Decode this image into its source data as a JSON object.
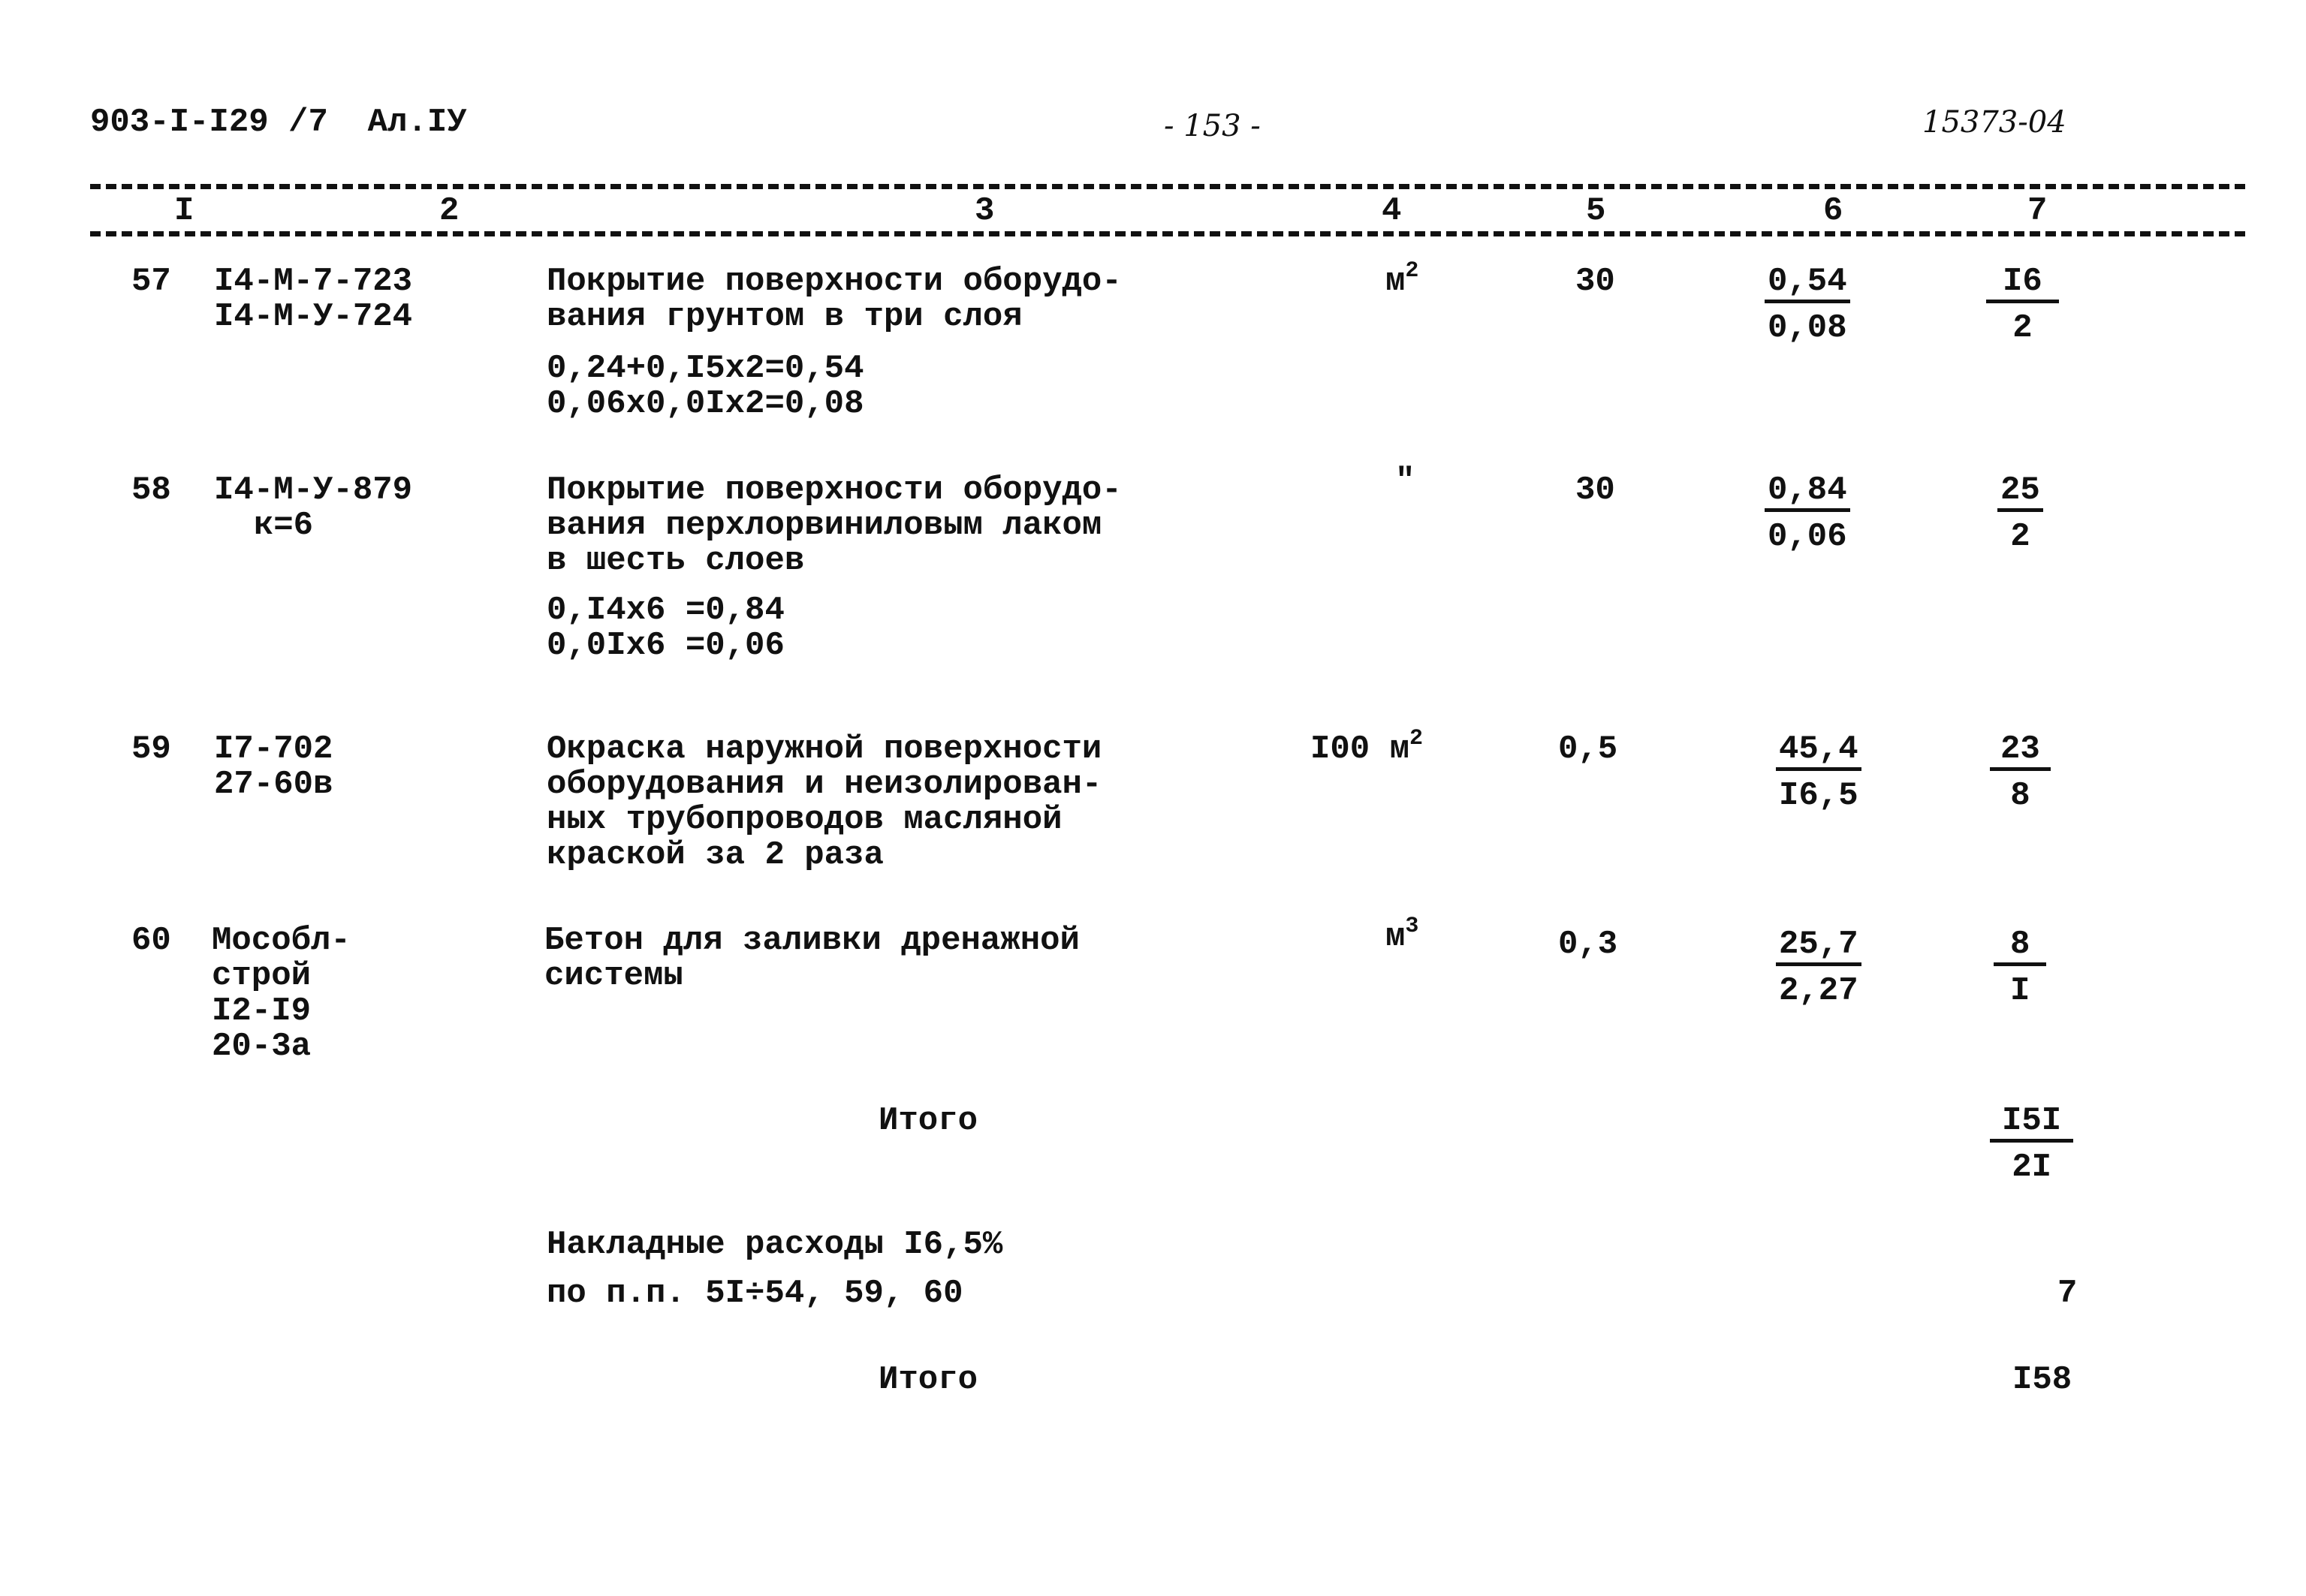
{
  "header": {
    "doc_code": "903-I-I29 /7  Ал.IУ",
    "page_number": "- 153 -",
    "archive_number": "15373-04"
  },
  "columns": [
    "I",
    "2",
    "3",
    "4",
    "5",
    "6",
    "7"
  ],
  "rows": [
    {
      "no": "57",
      "code": [
        "I4-M-7-723",
        "I4-M-У-724"
      ],
      "description": [
        "Покрытие поверхности оборудо-",
        "вания грунтом в три слоя"
      ],
      "calc": [
        "0,24+0,I5x2=0,54",
        "0,06x0,0Ix2=0,08"
      ],
      "unit": "м",
      "unit_sup": "2",
      "qty": "30",
      "col6_top": "0,54",
      "col6_bot": "0,08",
      "col7_top": "I6",
      "col7_bot": "2"
    },
    {
      "no": "58",
      "code": [
        "I4-M-У-879",
        "к=6"
      ],
      "description": [
        "Покрытие поверхности оборудо-",
        "вания перхлорвиниловым лаком",
        "в шесть слоев"
      ],
      "calc": [
        "0,I4x6 =0,84",
        "0,0Ix6 =0,06"
      ],
      "unit": "\"",
      "unit_sup": "",
      "qty": "30",
      "col6_top": "0,84",
      "col6_bot": "0,06",
      "col7_top": "25",
      "col7_bot": "2"
    },
    {
      "no": "59",
      "code": [
        "I7-702",
        "27-60в"
      ],
      "description": [
        "Окраска наружной поверхности",
        "оборудования и неизолирован-",
        "ных трубопроводов масляной",
        "краской за 2 раза"
      ],
      "calc": [],
      "unit": "I00 м",
      "unit_sup": "2",
      "qty": "0,5",
      "col6_top": "45,4",
      "col6_bot": "I6,5",
      "col7_top": "23",
      "col7_bot": "8"
    },
    {
      "no": "60",
      "code": [
        "Мособл-",
        "строй",
        "I2-I9",
        "20-3а"
      ],
      "description": [
        "Бетон для заливки дренажной",
        "системы"
      ],
      "calc": [],
      "unit": "м",
      "unit_sup": "3",
      "qty": "0,3",
      "col6_top": "25,7",
      "col6_bot": "2,27",
      "col7_top": "8",
      "col7_bot": "I"
    }
  ],
  "totals": {
    "subtotal_label": "Итого",
    "subtotal_top": "I5I",
    "subtotal_bot": "2I",
    "overhead_label": "Накладные расходы I6,5%",
    "overhead_items": "по п.п. 5I÷54, 59, 60",
    "overhead_value": "7",
    "total_label": "Итого",
    "total_value": "I58"
  }
}
